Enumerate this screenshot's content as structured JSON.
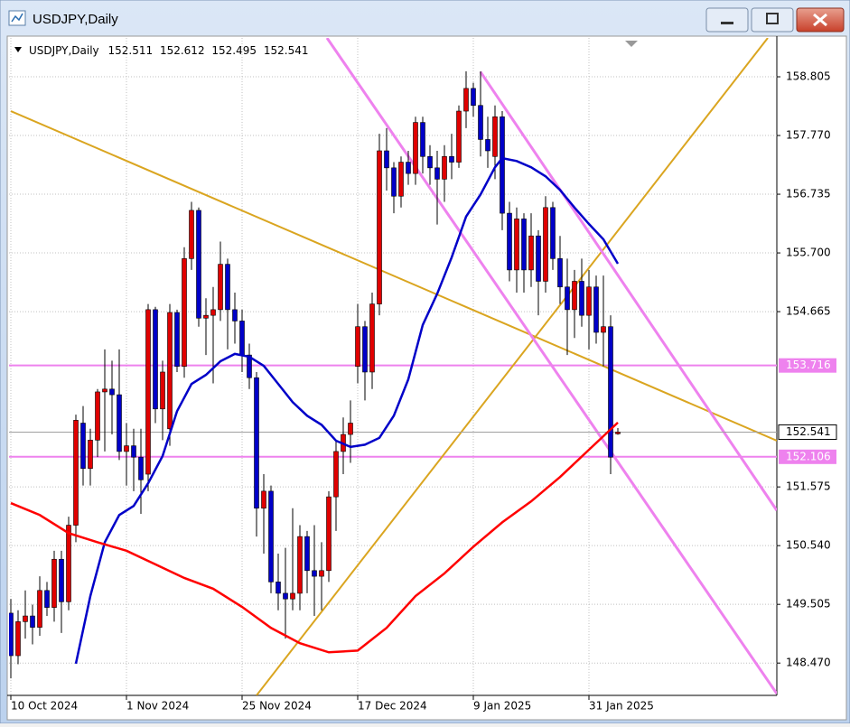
{
  "window": {
    "title": "USDJPY,Daily"
  },
  "chart_data": {
    "type": "candlestick",
    "title": "USDJPY,Daily",
    "categories": [
      "10 Oct 2024",
      null,
      null,
      null,
      null,
      null,
      null,
      null,
      null,
      null,
      null,
      null,
      null,
      null,
      null,
      null,
      "1 Nov 2024",
      null,
      null,
      null,
      null,
      null,
      null,
      null,
      null,
      null,
      null,
      null,
      null,
      null,
      null,
      null,
      "25 Nov 2024",
      null,
      null,
      null,
      null,
      null,
      null,
      null,
      null,
      null,
      null,
      null,
      null,
      null,
      null,
      null,
      "17 Dec 2024",
      null,
      null,
      null,
      null,
      null,
      null,
      null,
      null,
      null,
      null,
      null,
      null,
      null,
      null,
      null,
      "9 Jan 2025",
      null,
      null,
      null,
      null,
      null,
      null,
      null,
      null,
      null,
      null,
      null,
      null,
      null,
      null,
      null,
      "31 Jan 2025",
      null,
      null,
      null,
      null
    ],
    "open": [
      149.35,
      148.6,
      149.2,
      149.3,
      149.1,
      149.75,
      149.45,
      150.3,
      149.55,
      150.9,
      152.7,
      151.9,
      152.4,
      153.25,
      153.3,
      153.2,
      152.2,
      152.3,
      152.1,
      151.8,
      154.7,
      152.95,
      152.6,
      154.65,
      153.7,
      155.6,
      156.45,
      154.55,
      154.6,
      154.7,
      155.5,
      154.7,
      154.5,
      153.9,
      153.5,
      151.2,
      151.5,
      149.9,
      149.7,
      149.6,
      149.7,
      150.7,
      150.1,
      150.0,
      150.1,
      151.4,
      152.2,
      152.5,
      153.7,
      154.4,
      153.6,
      154.8,
      157.5,
      157.2,
      156.7,
      157.3,
      157.1,
      158.0,
      157.4,
      157.2,
      157.0,
      157.4,
      157.3,
      158.2,
      158.6,
      158.3,
      157.7,
      157.4,
      158.1,
      156.4,
      155.4,
      156.3,
      155.4,
      156.0,
      155.2,
      156.5,
      155.6,
      155.1,
      154.7,
      155.2,
      154.6,
      155.1,
      154.3,
      154.4,
      152.511
    ],
    "high": [
      149.6,
      149.4,
      149.75,
      149.5,
      150.0,
      149.9,
      150.45,
      150.45,
      151.05,
      152.85,
      153.0,
      152.6,
      153.3,
      154.0,
      153.8,
      154.0,
      152.7,
      152.6,
      152.6,
      154.8,
      154.75,
      153.8,
      154.8,
      154.7,
      155.8,
      156.6,
      156.5,
      154.9,
      155.1,
      155.9,
      155.6,
      155.0,
      154.7,
      154.1,
      153.6,
      151.8,
      151.6,
      150.4,
      150.5,
      151.2,
      150.9,
      150.8,
      150.9,
      150.6,
      151.5,
      152.4,
      152.8,
      153.1,
      154.8,
      154.5,
      155.0,
      157.8,
      157.9,
      157.3,
      157.4,
      157.5,
      158.1,
      158.1,
      157.6,
      157.5,
      157.6,
      157.8,
      158.3,
      158.9,
      158.7,
      158.9,
      158.1,
      158.3,
      158.2,
      156.6,
      156.5,
      156.4,
      156.4,
      156.1,
      156.7,
      156.6,
      156.0,
      155.6,
      155.4,
      155.6,
      155.4,
      155.3,
      155.3,
      154.6,
      152.612
    ],
    "low": [
      148.2,
      148.45,
      148.9,
      148.8,
      148.95,
      149.3,
      149.2,
      149.0,
      149.4,
      150.6,
      151.6,
      151.6,
      152.1,
      152.2,
      152.5,
      152.05,
      151.6,
      151.5,
      151.1,
      151.5,
      152.7,
      152.4,
      152.3,
      153.6,
      153.5,
      155.4,
      154.4,
      153.9,
      153.4,
      154.5,
      154.0,
      154.1,
      153.6,
      153.3,
      150.7,
      150.4,
      149.7,
      149.4,
      148.9,
      149.4,
      149.4,
      149.7,
      149.3,
      149.4,
      149.9,
      150.8,
      151.8,
      152.0,
      153.4,
      153.1,
      153.3,
      154.6,
      156.8,
      156.4,
      156.5,
      156.9,
      156.9,
      157.1,
      156.9,
      156.2,
      156.6,
      157.0,
      157.2,
      157.9,
      158.1,
      157.4,
      157.2,
      157.0,
      156.1,
      155.2,
      155.0,
      155.0,
      155.1,
      154.6,
      155.0,
      155.4,
      154.8,
      153.9,
      154.2,
      154.4,
      154.0,
      154.1,
      153.7,
      151.8,
      152.495
    ],
    "close": [
      148.6,
      149.2,
      149.3,
      149.1,
      149.75,
      149.45,
      150.3,
      149.55,
      150.9,
      152.75,
      151.9,
      152.4,
      153.25,
      153.3,
      153.2,
      152.2,
      152.3,
      152.1,
      151.7,
      154.7,
      152.95,
      153.6,
      154.65,
      153.7,
      155.6,
      156.45,
      154.55,
      154.6,
      154.7,
      155.5,
      154.7,
      154.5,
      153.9,
      153.5,
      151.2,
      151.5,
      149.9,
      149.7,
      149.6,
      149.7,
      150.7,
      150.1,
      150.0,
      150.1,
      151.4,
      152.2,
      152.5,
      152.7,
      154.4,
      153.6,
      154.8,
      157.5,
      157.2,
      156.7,
      157.3,
      157.1,
      158.0,
      157.4,
      157.2,
      157.0,
      157.4,
      157.3,
      158.2,
      158.6,
      158.3,
      157.7,
      157.5,
      158.1,
      156.4,
      155.4,
      156.3,
      155.4,
      156.0,
      155.2,
      156.5,
      155.6,
      155.1,
      154.7,
      155.2,
      154.6,
      155.1,
      154.3,
      154.4,
      152.1,
      152.541
    ],
    "bull_color": "#e00000",
    "bear_color": "#0000c8",
    "wick_color": "#000000",
    "ylim": [
      147.9,
      159.49
    ],
    "yticks": [
      158.805,
      {
        "value": 157.77,
        "label": "157.770"
      },
      156.735,
      {
        "value": 155.7,
        "label": "155.700"
      },
      154.665,
      151.575,
      {
        "value": 150.54,
        "label": "150.540"
      },
      149.505,
      {
        "value": 148.47,
        "label": "148.470"
      }
    ],
    "grid": true,
    "indicators": [
      {
        "color": "#0000c8",
        "x": [
          9,
          11,
          13,
          15,
          17,
          19,
          21,
          23,
          25,
          27,
          29,
          31,
          33,
          35,
          37,
          39,
          41,
          43,
          45,
          47,
          49,
          51,
          53,
          55,
          57,
          59,
          61,
          63,
          65,
          67,
          68,
          70,
          72,
          74,
          76,
          78,
          80,
          82,
          84
        ],
        "values": [
          148.46,
          149.65,
          150.6,
          151.08,
          151.24,
          151.64,
          152.12,
          152.91,
          153.39,
          153.55,
          153.79,
          153.92,
          153.87,
          153.71,
          153.39,
          153.07,
          152.83,
          152.67,
          152.39,
          152.28,
          152.32,
          152.44,
          152.83,
          153.47,
          154.43,
          154.98,
          155.62,
          156.34,
          156.73,
          157.21,
          157.37,
          157.32,
          157.21,
          157.05,
          156.81,
          156.5,
          156.21,
          155.94,
          155.51
        ]
      },
      {
        "color": "#ff0000",
        "x": [
          0,
          4,
          8,
          12,
          16,
          20,
          24,
          28,
          32,
          36,
          40,
          44,
          48,
          52,
          56,
          60,
          64,
          68,
          72,
          76,
          80,
          84
        ],
        "values": [
          151.29,
          151.08,
          150.76,
          150.6,
          150.45,
          150.21,
          149.97,
          149.78,
          149.46,
          149.09,
          148.82,
          148.66,
          148.69,
          149.09,
          149.65,
          150.05,
          150.52,
          150.95,
          151.32,
          151.75,
          152.23,
          152.71
        ]
      }
    ],
    "trendlines": [
      {
        "color": "#daa520",
        "x": [
          0,
          106
        ],
        "values": [
          158.2,
          152.39
        ]
      },
      {
        "color": "#daa520",
        "x": [
          34,
          104.75
        ],
        "values": [
          147.9,
          159.49
        ]
      },
      {
        "color": "#ee82ee",
        "x": [
          43.75,
          106
        ],
        "values": [
          159.49,
          147.93
        ]
      },
      {
        "color": "#ee82ee",
        "x": [
          65,
          106
        ],
        "values": [
          158.89,
          151.16
        ]
      }
    ],
    "hlines": [
      {
        "value": 153.716,
        "color": "#ee82ee"
      },
      {
        "value": 152.106,
        "color": "#ee82ee"
      }
    ]
  }
}
